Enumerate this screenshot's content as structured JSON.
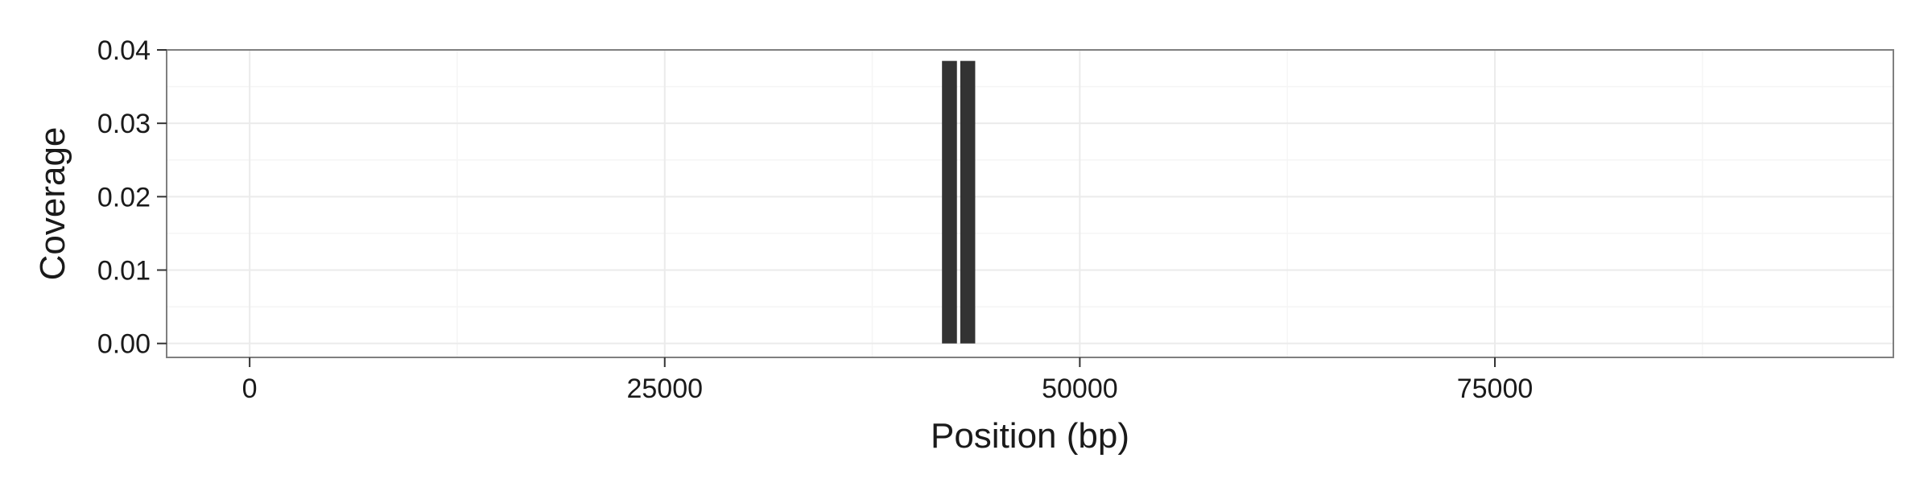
{
  "chart_data": {
    "type": "bar",
    "title": "",
    "xlabel": "Position (bp)",
    "ylabel": "Coverage",
    "xlim": [
      -5000,
      99000
    ],
    "ylim": [
      -0.0019,
      0.04
    ],
    "x_ticks": [
      0,
      25000,
      50000,
      75000
    ],
    "x_tick_labels": [
      "0",
      "25000",
      "50000",
      "75000"
    ],
    "y_ticks": [
      0,
      0.01,
      0.02,
      0.03,
      0.04
    ],
    "y_tick_labels": [
      "0.00",
      "0.01",
      "0.02",
      "0.03",
      "0.04"
    ],
    "grid": true,
    "legend": "none",
    "bar_color": "#333333",
    "grid_color": "#ebebeb",
    "panel_border_color": "#7f7f7f",
    "bars": [
      {
        "x_start": 41700,
        "x_end": 42600,
        "value": 0.0385
      },
      {
        "x_start": 42800,
        "x_end": 43700,
        "value": 0.0385
      }
    ]
  }
}
